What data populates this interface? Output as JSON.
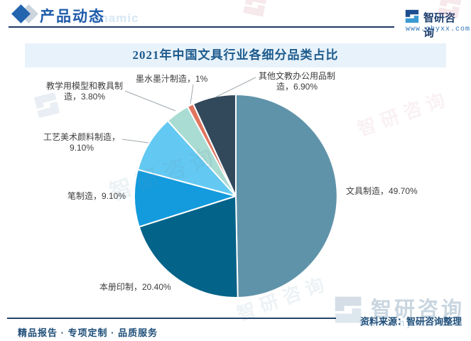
{
  "header": {
    "title": "产品动态",
    "watermark_text": "ynamic",
    "brand": {
      "name": "智研咨询",
      "website": "www.chyxx.com"
    }
  },
  "chart": {
    "title": "2021年中国文具行业各细分品类占比"
  },
  "chart_data": {
    "type": "pie",
    "title": "2021年中国文具行业各细分品类占比",
    "unit": "%",
    "start_angle_deg": 0,
    "direction": "clockwise",
    "legend_position": "outside-labels",
    "slices": [
      {
        "label": "文具制造",
        "value": 49.7,
        "display": "文具制造，49.70%",
        "color": "#5f93a9",
        "label_lines": [
          "文具制造，49.70%"
        ]
      },
      {
        "label": "本册印制",
        "value": 20.4,
        "display": "本册印制，20.40%",
        "color": "#046389",
        "label_lines": [
          "本册印制，20.40%"
        ]
      },
      {
        "label": "笔制造",
        "value": 9.1,
        "display": "笔制造，9.10%",
        "color": "#139bdd",
        "label_lines": [
          "笔制造，9.10%"
        ]
      },
      {
        "label": "工艺美术颜料制造",
        "value": 9.1,
        "display": "工艺美术颜料制造，9.10%",
        "color": "#63c9f2",
        "label_lines": [
          "工艺美术颜料制造，",
          "9.10%"
        ]
      },
      {
        "label": "教学用模型和教具制造",
        "value": 3.8,
        "display": "教学用模型和教具制造，3.80%",
        "color": "#a9dcd3",
        "label_lines": [
          "教学用模型和教具制",
          "造，3.80%"
        ]
      },
      {
        "label": "墨水墨汁制造",
        "value": 1.0,
        "display": "墨水墨汁制造，1%",
        "color": "#e0745e",
        "label_lines": [
          "墨水墨汁制造，1%"
        ]
      },
      {
        "label": "其他文教办公用品制造",
        "value": 6.9,
        "display": "其他文教办公用品制造，6.90%",
        "color": "#32495c",
        "label_lines": [
          "其他文教办公用品制",
          "造，6.90%"
        ]
      }
    ]
  },
  "footer": {
    "source": "资料来源：智研咨询整理",
    "tagline": "精品报告 · 专项定制 · 品质服务",
    "watermark": {
      "name": "智研咨询",
      "website": "www.chyxx.com"
    }
  },
  "colors": {
    "header_blue": "#1e5ba9",
    "rule_navy": "#1f3a64",
    "band_background": "#e8f2fa",
    "chart_title": "#1c5a8c",
    "source_text": "#1f4e79",
    "leader_line": "#9fa8ae"
  }
}
